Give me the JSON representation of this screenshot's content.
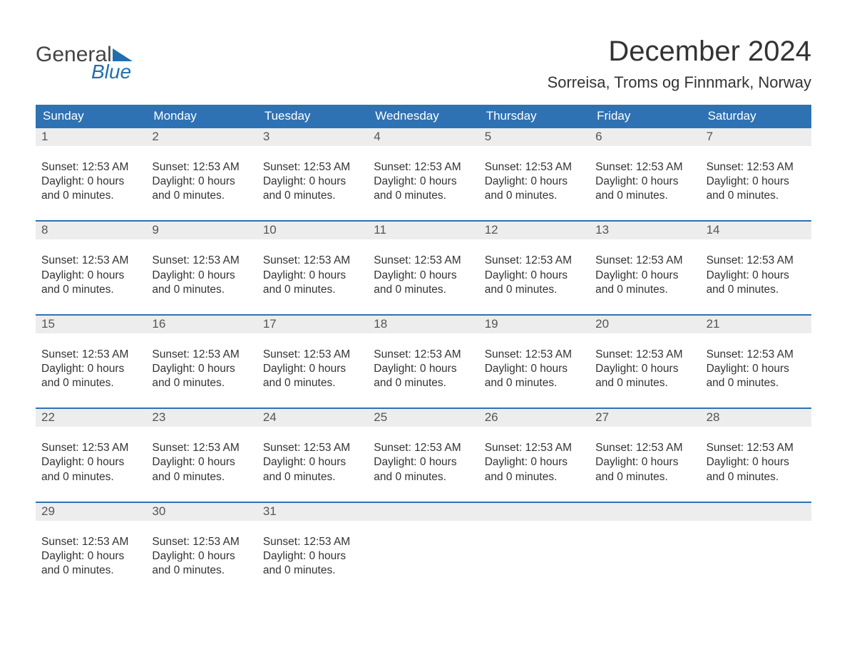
{
  "brand": {
    "general": "General",
    "blue": "Blue"
  },
  "title": "December 2024",
  "location": "Sorreisa, Troms og Finnmark, Norway",
  "colors": {
    "header_bg": "#2e72b4",
    "header_text": "#ffffff",
    "daynum_bg": "#ededed",
    "daynum_text": "#555555",
    "body_text": "#333333",
    "week_border": "#2e72b4",
    "logo_blue": "#1f6fb0",
    "logo_gray": "#444444"
  },
  "typography": {
    "title_fontsize": 40,
    "location_fontsize": 22,
    "dayheader_fontsize": 17,
    "daynum_fontsize": 17,
    "cell_fontsize": 15.5
  },
  "layout": {
    "columns": 7,
    "weeks": 5,
    "start_day_index": 0
  },
  "day_names": [
    "Sunday",
    "Monday",
    "Tuesday",
    "Wednesday",
    "Thursday",
    "Friday",
    "Saturday"
  ],
  "days": [
    {
      "n": "1",
      "sunset": "Sunset: 12:53 AM",
      "dl1": "Daylight: 0 hours",
      "dl2": "and 0 minutes."
    },
    {
      "n": "2",
      "sunset": "Sunset: 12:53 AM",
      "dl1": "Daylight: 0 hours",
      "dl2": "and 0 minutes."
    },
    {
      "n": "3",
      "sunset": "Sunset: 12:53 AM",
      "dl1": "Daylight: 0 hours",
      "dl2": "and 0 minutes."
    },
    {
      "n": "4",
      "sunset": "Sunset: 12:53 AM",
      "dl1": "Daylight: 0 hours",
      "dl2": "and 0 minutes."
    },
    {
      "n": "5",
      "sunset": "Sunset: 12:53 AM",
      "dl1": "Daylight: 0 hours",
      "dl2": "and 0 minutes."
    },
    {
      "n": "6",
      "sunset": "Sunset: 12:53 AM",
      "dl1": "Daylight: 0 hours",
      "dl2": "and 0 minutes."
    },
    {
      "n": "7",
      "sunset": "Sunset: 12:53 AM",
      "dl1": "Daylight: 0 hours",
      "dl2": "and 0 minutes."
    },
    {
      "n": "8",
      "sunset": "Sunset: 12:53 AM",
      "dl1": "Daylight: 0 hours",
      "dl2": "and 0 minutes."
    },
    {
      "n": "9",
      "sunset": "Sunset: 12:53 AM",
      "dl1": "Daylight: 0 hours",
      "dl2": "and 0 minutes."
    },
    {
      "n": "10",
      "sunset": "Sunset: 12:53 AM",
      "dl1": "Daylight: 0 hours",
      "dl2": "and 0 minutes."
    },
    {
      "n": "11",
      "sunset": "Sunset: 12:53 AM",
      "dl1": "Daylight: 0 hours",
      "dl2": "and 0 minutes."
    },
    {
      "n": "12",
      "sunset": "Sunset: 12:53 AM",
      "dl1": "Daylight: 0 hours",
      "dl2": "and 0 minutes."
    },
    {
      "n": "13",
      "sunset": "Sunset: 12:53 AM",
      "dl1": "Daylight: 0 hours",
      "dl2": "and 0 minutes."
    },
    {
      "n": "14",
      "sunset": "Sunset: 12:53 AM",
      "dl1": "Daylight: 0 hours",
      "dl2": "and 0 minutes."
    },
    {
      "n": "15",
      "sunset": "Sunset: 12:53 AM",
      "dl1": "Daylight: 0 hours",
      "dl2": "and 0 minutes."
    },
    {
      "n": "16",
      "sunset": "Sunset: 12:53 AM",
      "dl1": "Daylight: 0 hours",
      "dl2": "and 0 minutes."
    },
    {
      "n": "17",
      "sunset": "Sunset: 12:53 AM",
      "dl1": "Daylight: 0 hours",
      "dl2": "and 0 minutes."
    },
    {
      "n": "18",
      "sunset": "Sunset: 12:53 AM",
      "dl1": "Daylight: 0 hours",
      "dl2": "and 0 minutes."
    },
    {
      "n": "19",
      "sunset": "Sunset: 12:53 AM",
      "dl1": "Daylight: 0 hours",
      "dl2": "and 0 minutes."
    },
    {
      "n": "20",
      "sunset": "Sunset: 12:53 AM",
      "dl1": "Daylight: 0 hours",
      "dl2": "and 0 minutes."
    },
    {
      "n": "21",
      "sunset": "Sunset: 12:53 AM",
      "dl1": "Daylight: 0 hours",
      "dl2": "and 0 minutes."
    },
    {
      "n": "22",
      "sunset": "Sunset: 12:53 AM",
      "dl1": "Daylight: 0 hours",
      "dl2": "and 0 minutes."
    },
    {
      "n": "23",
      "sunset": "Sunset: 12:53 AM",
      "dl1": "Daylight: 0 hours",
      "dl2": "and 0 minutes."
    },
    {
      "n": "24",
      "sunset": "Sunset: 12:53 AM",
      "dl1": "Daylight: 0 hours",
      "dl2": "and 0 minutes."
    },
    {
      "n": "25",
      "sunset": "Sunset: 12:53 AM",
      "dl1": "Daylight: 0 hours",
      "dl2": "and 0 minutes."
    },
    {
      "n": "26",
      "sunset": "Sunset: 12:53 AM",
      "dl1": "Daylight: 0 hours",
      "dl2": "and 0 minutes."
    },
    {
      "n": "27",
      "sunset": "Sunset: 12:53 AM",
      "dl1": "Daylight: 0 hours",
      "dl2": "and 0 minutes."
    },
    {
      "n": "28",
      "sunset": "Sunset: 12:53 AM",
      "dl1": "Daylight: 0 hours",
      "dl2": "and 0 minutes."
    },
    {
      "n": "29",
      "sunset": "Sunset: 12:53 AM",
      "dl1": "Daylight: 0 hours",
      "dl2": "and 0 minutes."
    },
    {
      "n": "30",
      "sunset": "Sunset: 12:53 AM",
      "dl1": "Daylight: 0 hours",
      "dl2": "and 0 minutes."
    },
    {
      "n": "31",
      "sunset": "Sunset: 12:53 AM",
      "dl1": "Daylight: 0 hours",
      "dl2": "and 0 minutes."
    }
  ]
}
